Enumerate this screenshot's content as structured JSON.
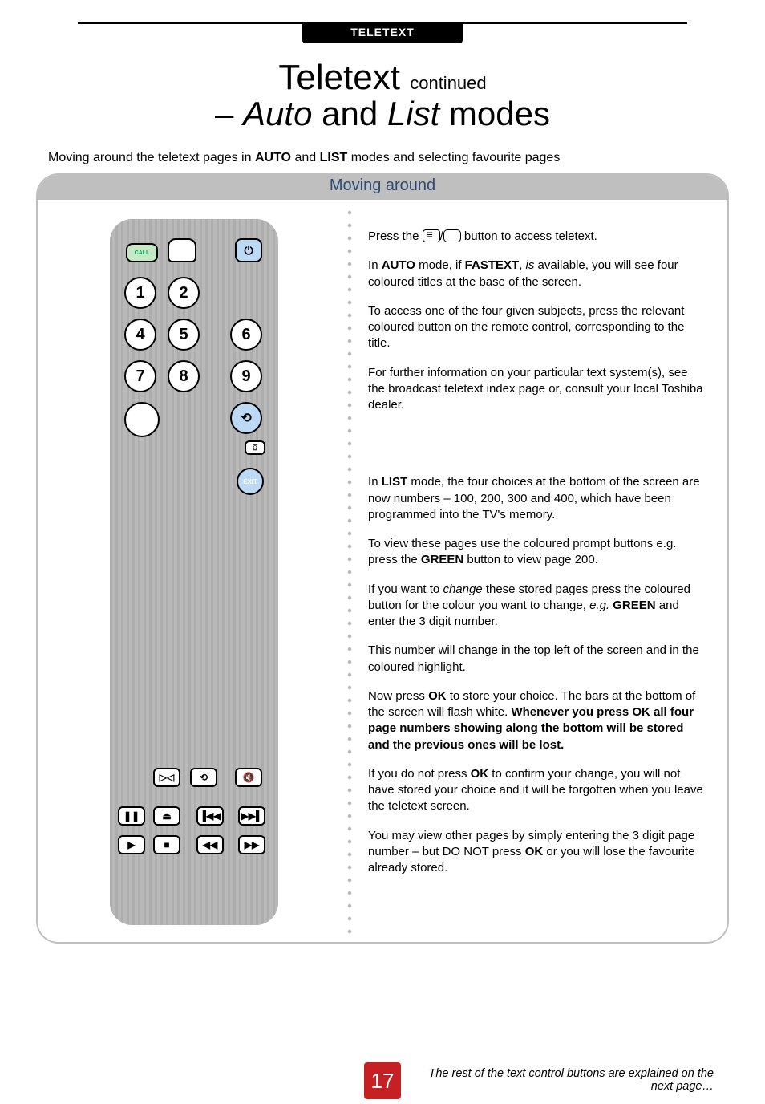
{
  "section_tab": "TELETEXT",
  "title": {
    "main": "Teletext",
    "cont": "continued",
    "line2_pre": "– ",
    "line2_i1": "Auto",
    "line2_mid": " and ",
    "line2_i2": "List",
    "line2_post": " modes"
  },
  "subtitle_pre": "Moving around the teletext pages in ",
  "subtitle_b1": "AUTO",
  "subtitle_mid": " and ",
  "subtitle_b2": "LIST",
  "subtitle_post": " modes and selecting favourite pages",
  "panel_head": "Moving around",
  "remote": {
    "call": "CALL",
    "power": "⏻",
    "digits": {
      "1": "1",
      "2": "2",
      "4": "4",
      "5": "5",
      "6": "6",
      "7": "7",
      "8": "8",
      "9": "9"
    },
    "ret": "⟲",
    "tv": "⌼",
    "exit": "EXIT",
    "media": {
      "mute": "▷◁",
      "rep": "⟲",
      "vol": "🔇",
      "pause": "❚❚",
      "eject": "⏏",
      "prev": "▐◀◀",
      "next": "▶▶▌",
      "play": "▶",
      "stop": "■",
      "rew": "◀◀",
      "ff": "▶▶"
    }
  },
  "body": {
    "p1_pre": "Press the ",
    "p1_post": " button to access teletext.",
    "p2_a": "In ",
    "p2_b": "AUTO",
    "p2_c": " mode, if ",
    "p2_d": "FASTEXT",
    "p2_e": ", ",
    "p2_f": "is",
    "p2_g": " available, you will see four coloured titles at the base of the screen.",
    "p3": "To access one of the four given subjects, press the relevant coloured button on the remote control, corresponding to the title.",
    "p4": "For further information on your particular text system(s), see the broadcast teletext index page or, consult your local Toshiba dealer.",
    "p5_a": "In ",
    "p5_b": "LIST",
    "p5_c": " mode, the four choices at the bottom of the screen are now numbers – 100, 200, 300 and 400, which have been programmed into the TV's memory.",
    "p6_a": "To view these pages use the coloured prompt buttons e.g. press the ",
    "p6_b": "GREEN",
    "p6_c": " button to view page 200.",
    "p7_a": "If you want to ",
    "p7_b": "change",
    "p7_c": " these stored pages press the coloured button for the colour you want to change, ",
    "p7_d": "e.g.",
    "p7_e": " ",
    "p7_f": "GREEN",
    "p7_g": " and enter the 3 digit number.",
    "p8": "This number will change in the top left of the screen and in the coloured highlight.",
    "p9_a": "Now press ",
    "p9_b": "OK",
    "p9_c": " to store your choice. The bars at the bottom of the screen will flash white. ",
    "p9_d": "Whenever you press OK all four page numbers showing along the bottom will be stored and the previous ones will be lost.",
    "p10_a": "If you do not press ",
    "p10_b": "OK",
    "p10_c": " to confirm your change, you will not have stored your choice and it will be forgotten when you leave the teletext screen.",
    "p11_a": "You may view other pages by simply entering the 3 digit page number – but DO NOT press ",
    "p11_b": "OK",
    "p11_c": " or you will lose the favourite already stored."
  },
  "footer_note": "The rest of the text control buttons are explained on the next page…",
  "page_number": "17",
  "colors": {
    "tab_bg": "#000000",
    "tab_fg": "#ffffff",
    "panel_border": "#bfbfbf",
    "panel_head_fg": "#2c4b73",
    "pagebox": "#c62024"
  }
}
